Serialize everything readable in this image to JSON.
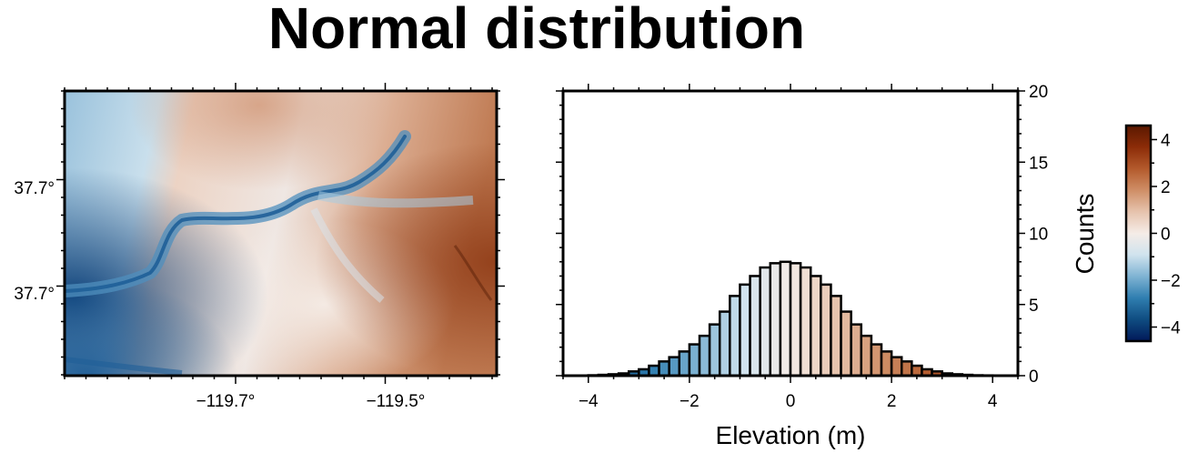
{
  "title": "Normal distribution",
  "colormap": {
    "name": "vik",
    "stops": [
      "#011959",
      "#0f4c81",
      "#2f7eb0",
      "#7fb3d3",
      "#d0e3ee",
      "#f5ece7",
      "#e6c3ad",
      "#cf8e66",
      "#b35a2c",
      "#8c2c08",
      "#5a1800"
    ]
  },
  "map": {
    "x_ticks": [
      "−119.7°",
      "−119.5°"
    ],
    "y_ticks": [
      "37.7°",
      "37.7°"
    ]
  },
  "colorbar": {
    "ticks": [
      "4",
      "2",
      "0",
      "−2",
      "−4"
    ],
    "range": [
      -4.6,
      4.6
    ]
  },
  "chart_data": {
    "type": "bar",
    "title": "",
    "xlabel": "Elevation (m)",
    "ylabel": "Counts",
    "xlim": [
      -4.5,
      4.5
    ],
    "ylim": [
      0,
      20
    ],
    "x_ticks": [
      {
        "v": -4,
        "t": "−4"
      },
      {
        "v": -2,
        "t": "−2"
      },
      {
        "v": 0,
        "t": "0"
      },
      {
        "v": 2,
        "t": "2"
      },
      {
        "v": 4,
        "t": "4"
      }
    ],
    "y_ticks": [
      {
        "v": 0,
        "t": "0"
      },
      {
        "v": 5,
        "t": "5"
      },
      {
        "v": 10,
        "t": "10"
      },
      {
        "v": 15,
        "t": "15"
      },
      {
        "v": 20,
        "t": "20"
      }
    ],
    "bin_width": 0.2,
    "bin_centers": [
      -3.9,
      -3.7,
      -3.5,
      -3.3,
      -3.1,
      -2.9,
      -2.7,
      -2.5,
      -2.3,
      -2.1,
      -1.9,
      -1.7,
      -1.5,
      -1.3,
      -1.1,
      -0.9,
      -0.7,
      -0.5,
      -0.3,
      -0.1,
      0.1,
      0.3,
      0.5,
      0.7,
      0.9,
      1.1,
      1.3,
      1.5,
      1.7,
      1.9,
      2.1,
      2.3,
      2.5,
      2.7,
      2.9,
      3.1,
      3.3,
      3.5,
      3.7,
      3.9
    ],
    "counts": [
      0.03,
      0.06,
      0.1,
      0.16,
      0.3,
      0.45,
      0.7,
      1.0,
      1.3,
      1.7,
      2.2,
      2.8,
      3.6,
      4.5,
      5.6,
      6.4,
      7.0,
      7.6,
      7.9,
      8.0,
      7.9,
      7.6,
      7.0,
      6.4,
      5.6,
      4.5,
      3.6,
      2.8,
      2.2,
      1.7,
      1.3,
      1.0,
      0.7,
      0.45,
      0.3,
      0.16,
      0.1,
      0.06,
      0.03,
      0.02
    ]
  }
}
